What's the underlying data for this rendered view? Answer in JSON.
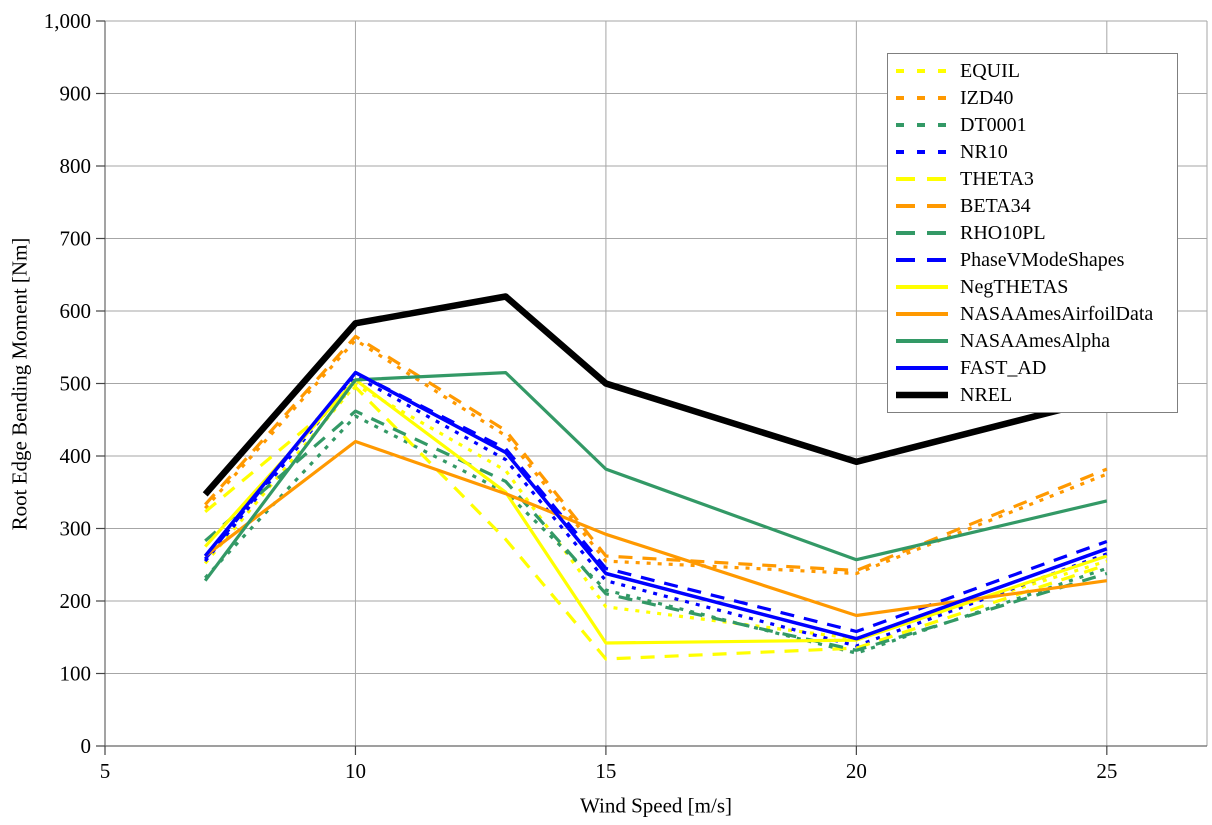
{
  "chart_data": {
    "type": "line",
    "title": "",
    "xlabel": "Wind Speed [m/s]",
    "ylabel": "Root Edge Bending Moment [Nm]",
    "xlim": [
      5,
      27
    ],
    "ylim": [
      0,
      1000
    ],
    "x_ticks": [
      5,
      10,
      15,
      20,
      25
    ],
    "x_tick_labels": [
      "5",
      "10",
      "15",
      "20",
      "25"
    ],
    "y_ticks": [
      0,
      100,
      200,
      300,
      400,
      500,
      600,
      700,
      800,
      900,
      1000
    ],
    "y_tick_labels": [
      "0",
      "100",
      "200",
      "300",
      "400",
      "500",
      "600",
      "700",
      "800",
      "900",
      "1,000"
    ],
    "grid": true,
    "legend_position": "top-right",
    "x": [
      7,
      10,
      13,
      15,
      20,
      25
    ],
    "series": [
      {
        "name": "EQUIL",
        "color": "#FFFF00",
        "style": "dotted",
        "width": 3.2,
        "values": [
          252,
          498,
          380,
          192,
          148,
          255
        ]
      },
      {
        "name": "IZD40",
        "color": "#FF9900",
        "style": "dotted",
        "width": 3.2,
        "values": [
          328,
          560,
          428,
          255,
          238,
          375
        ]
      },
      {
        "name": "DT0001",
        "color": "#339966",
        "style": "dotted",
        "width": 3.2,
        "values": [
          232,
          455,
          350,
          215,
          128,
          245
        ]
      },
      {
        "name": "NR10",
        "color": "#0000FF",
        "style": "dotted",
        "width": 3.2,
        "values": [
          255,
          510,
          395,
          228,
          138,
          265
        ]
      },
      {
        "name": "THETA3",
        "color": "#FFFF00",
        "style": "dashed",
        "width": 3.2,
        "values": [
          323,
          495,
          285,
          120,
          135,
          250
        ]
      },
      {
        "name": "BETA34",
        "color": "#FF9900",
        "style": "dashed",
        "width": 3.2,
        "values": [
          333,
          565,
          435,
          262,
          242,
          382
        ]
      },
      {
        "name": "RHO10PL",
        "color": "#339966",
        "style": "dashed",
        "width": 3.2,
        "values": [
          283,
          462,
          365,
          210,
          132,
          238
        ]
      },
      {
        "name": "PhaseVModeShapes",
        "color": "#0000FF",
        "style": "dashed",
        "width": 3.2,
        "values": [
          258,
          515,
          410,
          245,
          158,
          282
        ]
      },
      {
        "name": "NegTHETAS",
        "color": "#FFFF00",
        "style": "solid",
        "width": 3.2,
        "values": [
          275,
          505,
          350,
          142,
          146,
          262
        ]
      },
      {
        "name": "NASAAmesAirfoilData",
        "color": "#FF9900",
        "style": "solid",
        "width": 3.2,
        "values": [
          262,
          420,
          348,
          292,
          180,
          228
        ]
      },
      {
        "name": "NASAAmesAlpha",
        "color": "#339966",
        "style": "solid",
        "width": 3.2,
        "values": [
          228,
          505,
          515,
          382,
          257,
          338
        ]
      },
      {
        "name": "FAST_AD",
        "color": "#0000FF",
        "style": "solid",
        "width": 3.5,
        "values": [
          262,
          515,
          405,
          238,
          148,
          272
        ]
      },
      {
        "name": "NREL",
        "color": "#000000",
        "style": "solid",
        "width": 6.5,
        "values": [
          347,
          583,
          620,
          500,
          392,
          480
        ]
      }
    ]
  },
  "styles": {
    "grid_color": "#A6A6A6",
    "axis_color": "#666666",
    "tick_color": "#444444",
    "text_color": "#000000",
    "legend_border": "#7f7f7f",
    "background": "#FFFFFF"
  }
}
